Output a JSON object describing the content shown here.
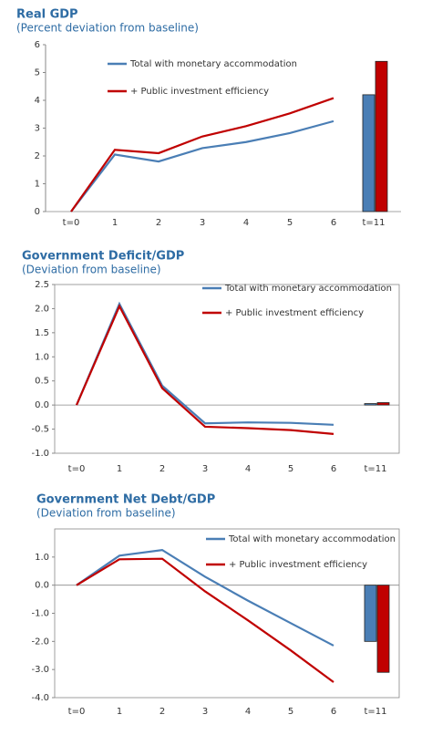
{
  "chart_data": [
    {
      "type": "combo",
      "title": "Real GDP",
      "subtitle": "(Percent deviation from baseline)",
      "categories": [
        "t=0",
        "1",
        "2",
        "3",
        "4",
        "5",
        "6",
        "t=11"
      ],
      "series": [
        {
          "name": "Total with monetary accommodation",
          "color": "#4a7eb5",
          "values": [
            0,
            2.05,
            1.8,
            2.28,
            2.5,
            2.82,
            3.25,
            4.2
          ]
        },
        {
          "name": "+ Public investment efficiency",
          "color": "#c00000",
          "values": [
            0,
            2.22,
            2.1,
            2.7,
            3.07,
            3.53,
            4.08,
            5.4
          ]
        }
      ],
      "ylim": [
        0,
        6
      ],
      "yticks": [
        0,
        1,
        2,
        3,
        4,
        5,
        6
      ],
      "frame": false
    },
    {
      "type": "combo",
      "title": "Government Deficit/GDP",
      "subtitle": "(Deviation from baseline)",
      "categories": [
        "t=0",
        "1",
        "2",
        "3",
        "4",
        "5",
        "6",
        "t=11"
      ],
      "series": [
        {
          "name": "Total with monetary accommodation",
          "color": "#4a7eb5",
          "values": [
            0,
            2.1,
            0.4,
            -0.38,
            -0.36,
            -0.37,
            -0.41,
            0.03
          ]
        },
        {
          "name": "+ Public investment efficiency",
          "color": "#c00000",
          "values": [
            0,
            2.05,
            0.35,
            -0.45,
            -0.48,
            -0.52,
            -0.6,
            0.05
          ]
        }
      ],
      "ylim": [
        -1,
        2.5
      ],
      "yticks": [
        {
          "value": -1,
          "label": "-1.0"
        },
        {
          "value": -0.5,
          "label": "-0.5"
        },
        {
          "value": 0,
          "label": "0.0"
        },
        {
          "value": 0.5,
          "label": "0.5"
        },
        {
          "value": 1,
          "label": "1.0"
        },
        {
          "value": 1.5,
          "label": "1.5"
        },
        {
          "value": 2,
          "label": "2.0"
        },
        {
          "value": 2.5,
          "label": "2.5"
        }
      ],
      "frame": true
    },
    {
      "type": "combo",
      "title": "Government Net Debt/GDP",
      "subtitle": "(Deviation from baseline)",
      "categories": [
        "t=0",
        "1",
        "2",
        "3",
        "4",
        "5",
        "6",
        "t=11"
      ],
      "series": [
        {
          "name": "Total with monetary accommodation",
          "color": "#4a7eb5",
          "values": [
            0,
            1.05,
            1.25,
            0.3,
            -0.55,
            -1.35,
            -2.15,
            -2.0
          ]
        },
        {
          "name": "+ Public investment efficiency",
          "color": "#c00000",
          "values": [
            0,
            0.92,
            0.94,
            -0.22,
            -1.25,
            -2.32,
            -3.45,
            -3.1
          ]
        }
      ],
      "ylim": [
        -4,
        2
      ],
      "yticks": [
        {
          "value": -4,
          "label": "-4.0"
        },
        {
          "value": -3,
          "label": "-3.0"
        },
        {
          "value": -2,
          "label": "-2.0"
        },
        {
          "value": -1,
          "label": "-1.0"
        },
        {
          "value": 0,
          "label": "0.0"
        },
        {
          "value": 1,
          "label": "1.0"
        }
      ],
      "frame": true
    }
  ]
}
